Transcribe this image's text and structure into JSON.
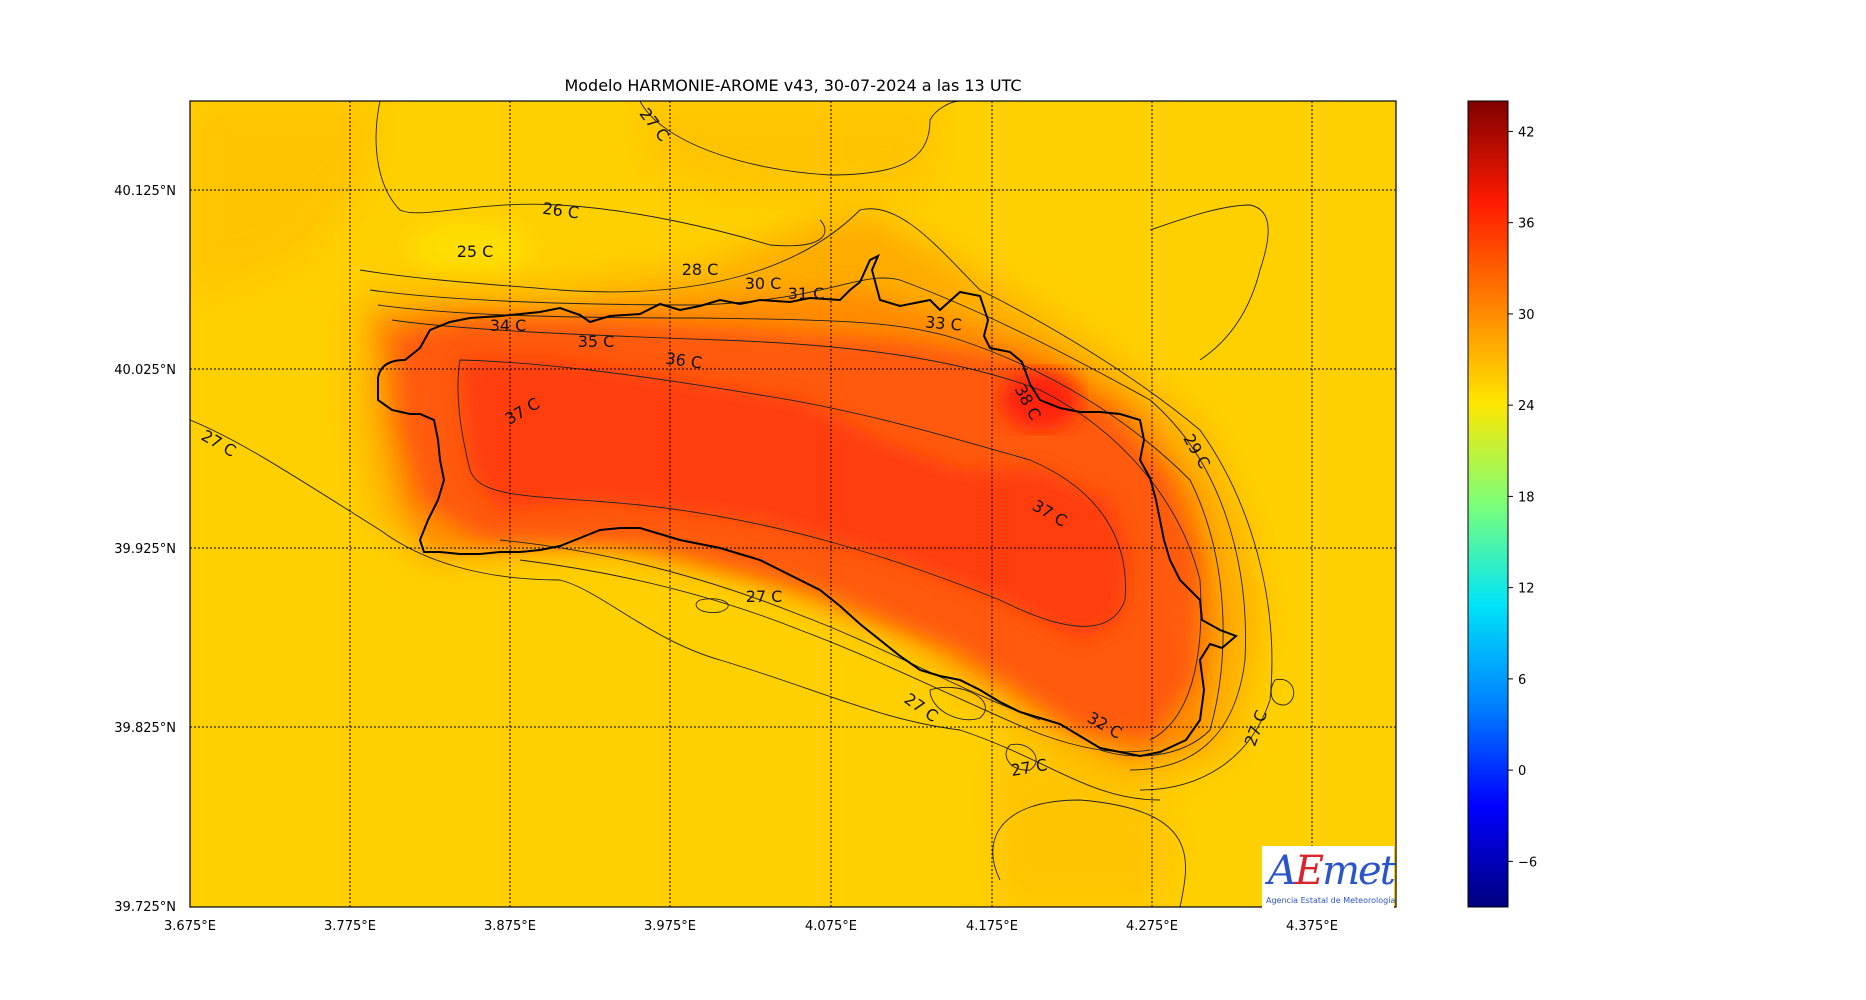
{
  "title": "Modelo HARMONIE-AROME v43, 30-07-2024 a las 13 UTC",
  "map": {
    "x_ticks": [
      "3.675°E",
      "3.775°E",
      "3.875°E",
      "3.975°E",
      "4.075°E",
      "4.175°E",
      "4.275°E",
      "4.375°E"
    ],
    "y_ticks": [
      "40.125°N",
      "40.025°N",
      "39.925°N",
      "39.825°N",
      "39.725°N"
    ],
    "lon_range": [
      3.675,
      4.425
    ],
    "lat_range": [
      39.725,
      40.175
    ],
    "grid": "dotted",
    "contour_unit": "C",
    "contour_labels": [
      "27 C",
      "26 C",
      "25 C",
      "28 C",
      "30 C",
      "31 C",
      "34 C",
      "35 C",
      "36 C",
      "33 C",
      "38 C",
      "37 C",
      "27 C",
      "29 C",
      "37 C",
      "27 C",
      "27 C",
      "32 C",
      "27 C",
      "27 C"
    ]
  },
  "colorbar": {
    "ticks": [
      "42",
      "36",
      "30",
      "24",
      "18",
      "12",
      "6",
      "0",
      "−6"
    ],
    "range": [
      -9,
      44
    ],
    "colors": [
      "#00007f",
      "#0000ff",
      "#0080ff",
      "#00e4f8",
      "#7cff79",
      "#ffe600",
      "#ff8000",
      "#ff1a00",
      "#7f0000"
    ]
  },
  "logo": {
    "part1": "A",
    "part2": "E",
    "part3": "met",
    "subtitle": "Agencia Estatal de Meteorología"
  },
  "colors": {
    "sea": "#ffd000",
    "coast_band": "#ffb800",
    "land_warm": "#ff5a0a",
    "land_hot": "#ff2e10"
  }
}
